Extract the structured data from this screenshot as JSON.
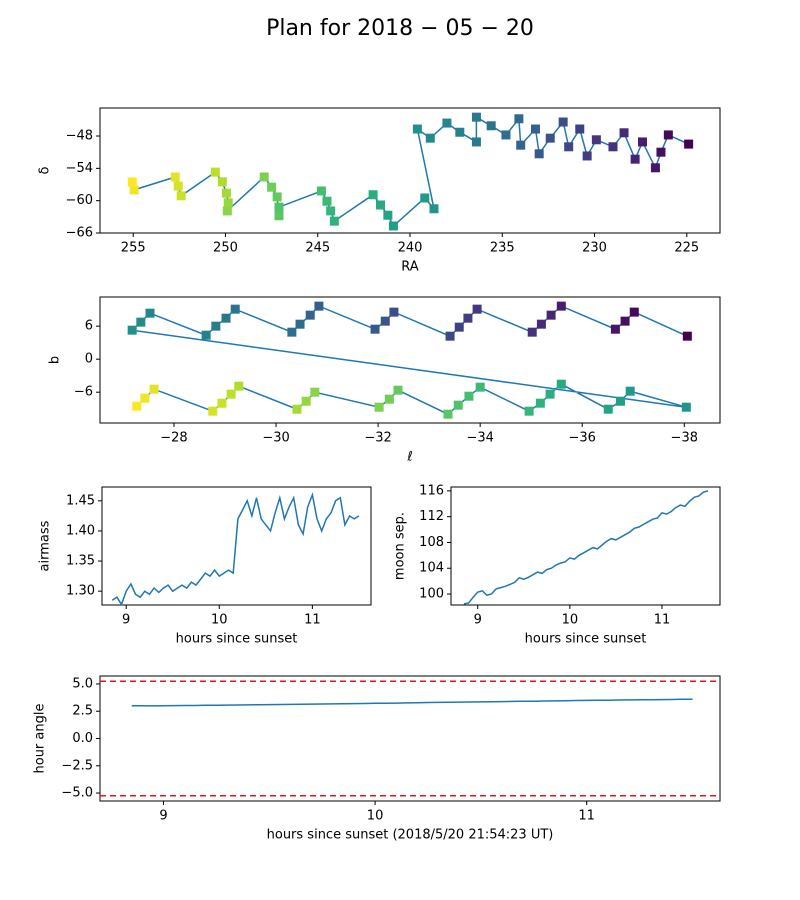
{
  "title": "Plan for 2018 − 05 − 20",
  "chart_data": [
    {
      "type": "scatter",
      "xlabel": "RA",
      "ylabel": "δ",
      "marker": "square",
      "line_color": "#1f77b4",
      "colormap": "viridis",
      "x": [
        224.9,
        226.0,
        226.4,
        226.7,
        227.4,
        227.8,
        228.4,
        229.0,
        229.9,
        230.4,
        230.8,
        231.4,
        231.7,
        232.4,
        233.0,
        233.2,
        234.0,
        234.1,
        234.8,
        235.6,
        236.4,
        236.4,
        237.3,
        238.0,
        238.9,
        239.6,
        238.7,
        239.2,
        240.9,
        241.2,
        241.6,
        242.0,
        244.1,
        244.3,
        244.5,
        244.8,
        247.1,
        247.1,
        247.2,
        247.5,
        247.9,
        249.9,
        249.85,
        249.95,
        250.17,
        250.55,
        252.4,
        252.56,
        252.72,
        254.95,
        255.05
      ],
      "y": [
        -49.5,
        -47.8,
        -51.0,
        -53.9,
        -49.1,
        -52.3,
        -47.4,
        -50.0,
        -48.7,
        -51.7,
        -46.7,
        -50.0,
        -45.4,
        -48.4,
        -51.3,
        -46.7,
        -49.7,
        -44.8,
        -47.8,
        -46.1,
        -44.5,
        -49.1,
        -47.3,
        -45.6,
        -48.4,
        -46.7,
        -61.5,
        -59.5,
        -64.7,
        -62.7,
        -60.8,
        -58.9,
        -63.8,
        -61.9,
        -60.1,
        -58.2,
        -61.2,
        -62.8,
        -59.3,
        -57.5,
        -55.6,
        -61.9,
        -60.4,
        -58.6,
        -56.5,
        -54.7,
        -59.1,
        -57.3,
        -55.6,
        -58.0,
        -56.53
      ],
      "xlim": [
        256.8,
        223.2
      ],
      "xticks": [
        255,
        250,
        245,
        240,
        235,
        230,
        225
      ],
      "ylim": [
        -66,
        -42.8
      ],
      "yticks": [
        {
          "value": -66,
          "label": "−66"
        },
        {
          "value": -60,
          "label": "−60"
        },
        {
          "value": -54,
          "label": "−54"
        },
        {
          "value": -48,
          "label": "−48"
        }
      ]
    },
    {
      "type": "scatter",
      "xlabel": "ℓ",
      "ylabel": "b",
      "marker": "square",
      "line_color": "#1f77b4",
      "colormap": "viridis",
      "x": [
        -38.06,
        -37.02,
        -36.84,
        -36.65,
        -35.59,
        -35.39,
        -35.2,
        -35.02,
        -33.94,
        -33.76,
        -33.59,
        -33.41,
        -32.31,
        -32.14,
        -31.94,
        -30.84,
        -30.67,
        -30.47,
        -30.31,
        -29.2,
        -29.02,
        -28.82,
        -28.63,
        -27.53,
        -27.35,
        -27.18,
        -38.04,
        -36.94,
        -36.75,
        -36.51,
        -35.59,
        -35.37,
        -35.18,
        -34.96,
        -34.0,
        -33.78,
        -33.57,
        -33.37,
        -32.39,
        -32.22,
        -32.02,
        -30.76,
        -30.59,
        -30.41,
        -29.27,
        -29.12,
        -28.94,
        -28.76,
        -27.61,
        -27.43,
        -27.27
      ],
      "y": [
        4.18,
        8.55,
        6.91,
        5.45,
        9.64,
        8.0,
        6.36,
        4.91,
        9.09,
        7.45,
        5.82,
        4.18,
        8.55,
        6.91,
        5.45,
        9.64,
        8.0,
        6.36,
        4.91,
        9.09,
        7.45,
        6.0,
        4.36,
        8.36,
        6.73,
        5.27,
        -8.73,
        -5.82,
        -7.64,
        -9.09,
        -4.55,
        -6.36,
        -8.0,
        -9.45,
        -5.09,
        -6.73,
        -8.36,
        -10.0,
        -5.64,
        -7.27,
        -8.73,
        -6.0,
        -7.64,
        -9.09,
        -4.91,
        -6.36,
        -8.0,
        -9.45,
        -5.45,
        -7.09,
        -8.55
      ],
      "xlim": [
        -26.55,
        -38.7
      ],
      "xticks": [
        {
          "value": -28,
          "label": "−28"
        },
        {
          "value": -30,
          "label": "−30"
        },
        {
          "value": -32,
          "label": "−32"
        },
        {
          "value": -34,
          "label": "−34"
        },
        {
          "value": -36,
          "label": "−36"
        },
        {
          "value": -38,
          "label": "−38"
        }
      ],
      "ylim": [
        -11.6,
        11.3
      ],
      "yticks": [
        {
          "value": -6,
          "label": "−6"
        },
        0,
        6
      ]
    },
    {
      "type": "line",
      "xlabel": "hours since sunset",
      "ylabel": "airmass",
      "line_color": "#1f77b4",
      "x": [
        8.85,
        8.9,
        8.95,
        9.0,
        9.05,
        9.1,
        9.15,
        9.2,
        9.25,
        9.3,
        9.35,
        9.4,
        9.45,
        9.5,
        9.55,
        9.6,
        9.65,
        9.7,
        9.75,
        9.8,
        9.85,
        9.9,
        9.95,
        10.0,
        10.05,
        10.1,
        10.15,
        10.2,
        10.25,
        10.3,
        10.35,
        10.4,
        10.45,
        10.5,
        10.55,
        10.6,
        10.65,
        10.7,
        10.75,
        10.8,
        10.85,
        10.9,
        10.95,
        11.0,
        11.05,
        11.1,
        11.15,
        11.2,
        11.25,
        11.3,
        11.35,
        11.4,
        11.45,
        11.5
      ],
      "y": [
        1.285,
        1.29,
        1.278,
        1.3,
        1.312,
        1.295,
        1.29,
        1.3,
        1.295,
        1.305,
        1.298,
        1.305,
        1.31,
        1.3,
        1.305,
        1.31,
        1.305,
        1.315,
        1.31,
        1.32,
        1.33,
        1.325,
        1.335,
        1.325,
        1.33,
        1.335,
        1.33,
        1.42,
        1.435,
        1.45,
        1.425,
        1.455,
        1.42,
        1.41,
        1.4,
        1.43,
        1.455,
        1.42,
        1.44,
        1.455,
        1.41,
        1.395,
        1.44,
        1.46,
        1.42,
        1.4,
        1.42,
        1.43,
        1.45,
        1.455,
        1.41,
        1.425,
        1.42,
        1.425
      ],
      "xlim": [
        8.74,
        11.63
      ],
      "xticks": [
        9,
        10,
        11
      ],
      "ylim": [
        1.277,
        1.473
      ],
      "yticks": [
        {
          "value": 1.3,
          "label": "1.30"
        },
        1.35,
        {
          "value": 1.4,
          "label": "1.40"
        },
        1.45
      ]
    },
    {
      "type": "line",
      "xlabel": "hours since sunset",
      "ylabel": "moon sep.",
      "line_color": "#1f77b4",
      "x": [
        8.85,
        8.9,
        8.95,
        9.0,
        9.05,
        9.1,
        9.15,
        9.2,
        9.25,
        9.3,
        9.35,
        9.4,
        9.45,
        9.5,
        9.55,
        9.6,
        9.65,
        9.7,
        9.75,
        9.8,
        9.85,
        9.9,
        9.95,
        10.0,
        10.05,
        10.1,
        10.15,
        10.2,
        10.25,
        10.3,
        10.35,
        10.4,
        10.45,
        10.5,
        10.55,
        10.6,
        10.65,
        10.7,
        10.75,
        10.8,
        10.85,
        10.9,
        10.95,
        11.0,
        11.05,
        11.1,
        11.15,
        11.2,
        11.25,
        11.3,
        11.35,
        11.4,
        11.45,
        11.5
      ],
      "y": [
        98.5,
        98.6,
        99.5,
        100.3,
        100.5,
        99.8,
        100.0,
        100.8,
        101.0,
        101.2,
        101.5,
        101.8,
        102.5,
        102.3,
        102.6,
        103.0,
        103.4,
        103.2,
        103.8,
        104.0,
        104.5,
        104.8,
        105.0,
        105.6,
        105.4,
        106.0,
        106.4,
        106.8,
        107.2,
        107.0,
        107.6,
        108.2,
        108.6,
        108.4,
        108.8,
        109.2,
        109.6,
        110.2,
        110.4,
        110.8,
        111.2,
        111.6,
        111.8,
        112.6,
        112.4,
        112.8,
        113.4,
        113.8,
        113.6,
        114.4,
        115.0,
        115.2,
        115.8,
        116.0
      ],
      "xlim": [
        8.71,
        11.63
      ],
      "xticks": [
        9,
        10,
        11
      ],
      "ylim": [
        98.3,
        116.6
      ],
      "yticks": [
        100,
        104,
        108,
        112,
        116
      ]
    },
    {
      "type": "line",
      "xlabel": "hours since sunset (2018/5/20 21:54:23 UT)",
      "ylabel": "hour angle",
      "line_color": "#1f77b4",
      "hlines": [
        5.25,
        -5.25
      ],
      "hline_color": "#e8141c",
      "hline_style": "dashed",
      "x": [
        8.85,
        8.9,
        8.95,
        9.0,
        9.05,
        9.1,
        9.15,
        9.2,
        9.25,
        9.3,
        9.35,
        9.4,
        9.45,
        9.5,
        9.55,
        9.6,
        9.65,
        9.7,
        9.75,
        9.8,
        9.85,
        9.9,
        9.95,
        10.0,
        10.05,
        10.1,
        10.15,
        10.2,
        10.25,
        10.3,
        10.35,
        10.4,
        10.45,
        10.5,
        10.55,
        10.6,
        10.65,
        10.7,
        10.75,
        10.8,
        10.85,
        10.9,
        10.95,
        11.0,
        11.05,
        11.1,
        11.15,
        11.2,
        11.25,
        11.3,
        11.35,
        11.4,
        11.45,
        11.5
      ],
      "y": [
        3.0,
        3.0,
        2.99,
        3.01,
        3.02,
        3.03,
        3.03,
        3.04,
        3.05,
        3.06,
        3.07,
        3.08,
        3.1,
        3.11,
        3.12,
        3.13,
        3.14,
        3.15,
        3.16,
        3.17,
        3.18,
        3.2,
        3.21,
        3.23,
        3.24,
        3.25,
        3.26,
        3.28,
        3.3,
        3.31,
        3.33,
        3.34,
        3.35,
        3.36,
        3.37,
        3.38,
        3.4,
        3.41,
        3.42,
        3.44,
        3.45,
        3.46,
        3.48,
        3.49,
        3.5,
        3.51,
        3.53,
        3.54,
        3.55,
        3.56,
        3.57,
        3.58,
        3.59,
        3.6
      ],
      "xlim": [
        8.7,
        11.63
      ],
      "xticks": [
        9,
        10,
        11
      ],
      "ylim": [
        -5.73,
        5.73
      ],
      "yticks": [
        {
          "value": -5,
          "label": "−5.0"
        },
        {
          "value": -2.5,
          "label": "−2.5"
        },
        {
          "value": 0,
          "label": "0.0"
        },
        {
          "value": 2.5,
          "label": "2.5"
        },
        {
          "value": 5,
          "label": "5.0"
        }
      ]
    }
  ]
}
